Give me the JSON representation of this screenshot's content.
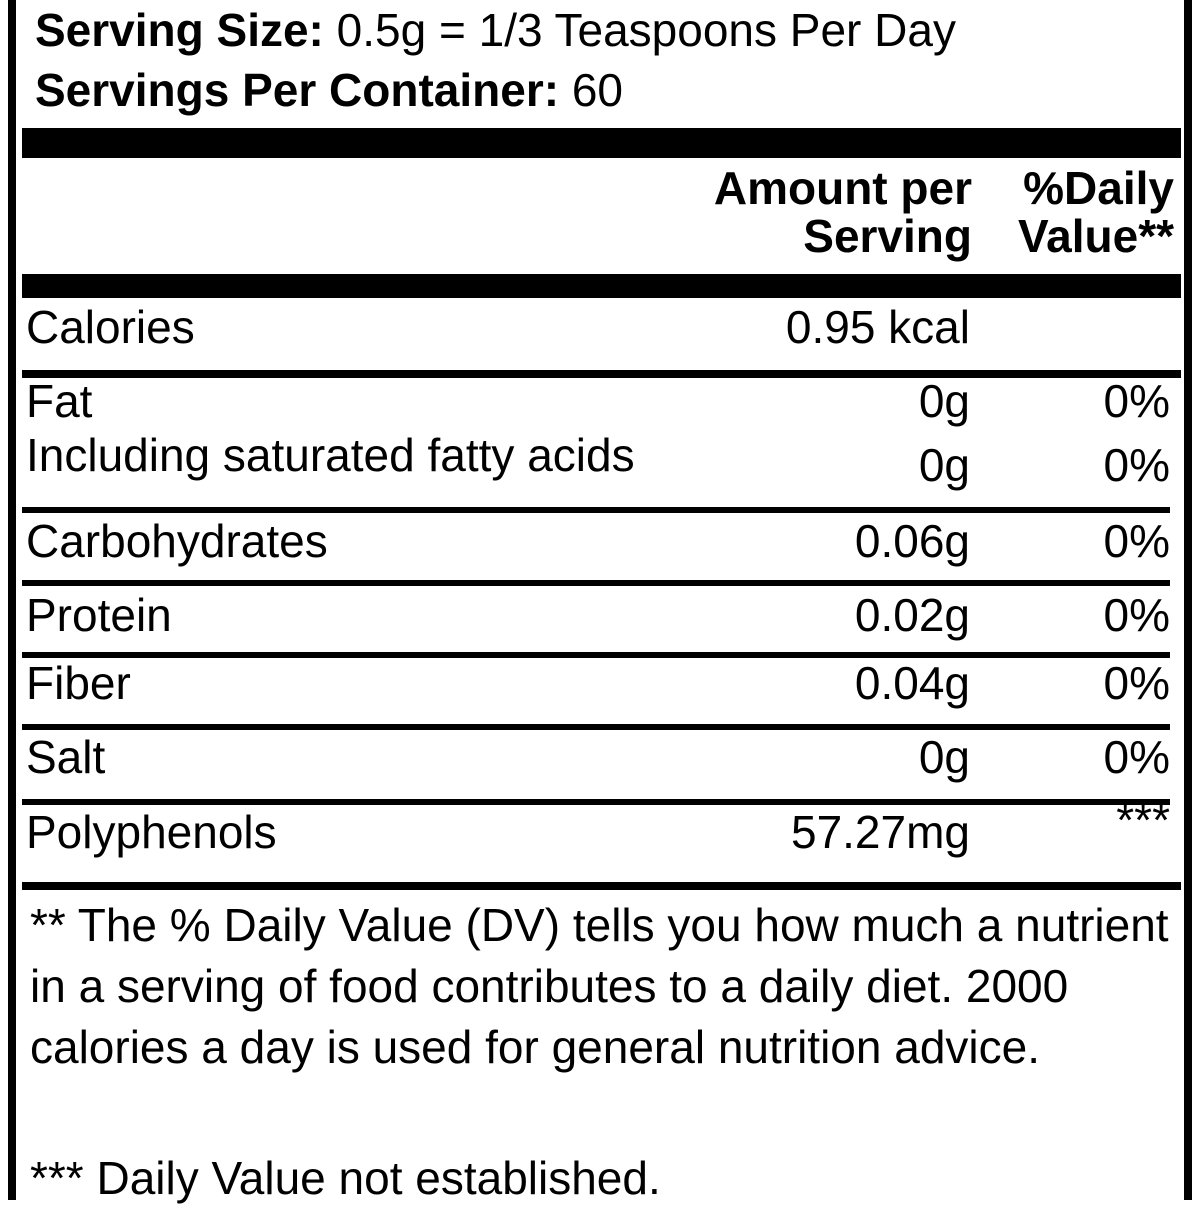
{
  "serving": {
    "size_label": "Serving Size:",
    "size_value": " 0.5g = 1/3 Teaspoons Per Day",
    "per_container_label": "Servings Per Container:",
    "per_container_value": " 60"
  },
  "table": {
    "header": {
      "amount_line1": "Amount per",
      "amount_line2": "Serving",
      "dv_line1": "%Daily",
      "dv_line2": "Value**"
    },
    "rows": [
      {
        "name": "Calories",
        "amount": "0.95 kcal",
        "dv": ""
      },
      {
        "name": "Fat",
        "amount": "0g",
        "dv": "0%"
      },
      {
        "name": "Including saturated fatty acids",
        "amount": "0g",
        "dv": "0%"
      },
      {
        "name": "Carbohydrates",
        "amount": "0.06g",
        "dv": "0%"
      },
      {
        "name": "Protein",
        "amount": "0.02g",
        "dv": "0%"
      },
      {
        "name": "Fiber",
        "amount": "0.04g",
        "dv": "0%"
      },
      {
        "name": "Salt",
        "amount": "0g",
        "dv": "0%"
      },
      {
        "name": "Polyphenols",
        "amount": "57.27mg",
        "dv": "***"
      }
    ]
  },
  "footnotes": {
    "daily_value": "** The % Daily Value (DV) tells you how much a nutrient in a serving of food contributes to a daily diet. 2000 calories a day is used for general nutrition advice.",
    "not_established": "*** Daily Value not established."
  }
}
